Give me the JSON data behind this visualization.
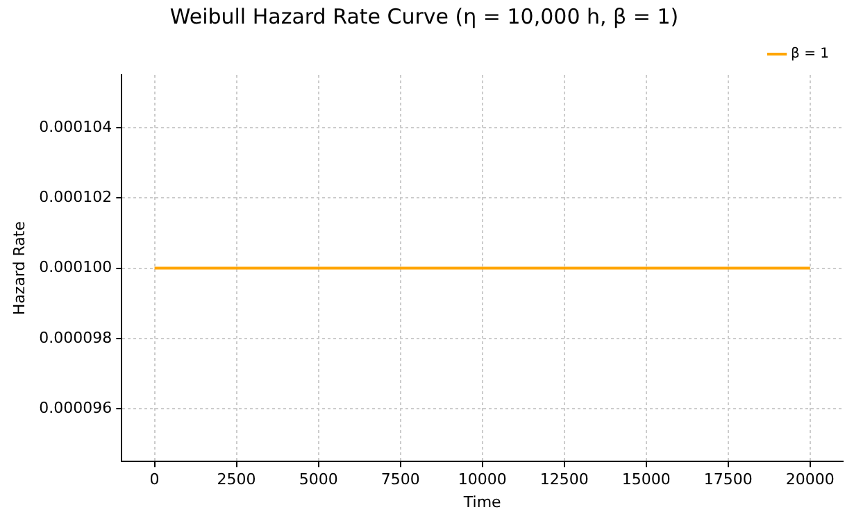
{
  "chart_data": {
    "type": "line",
    "title": "Weibull Hazard Rate Curve (η = 10,000 h, β = 1)",
    "xlabel": "Time",
    "ylabel": "Hazard Rate",
    "series": [
      {
        "name": "β = 1",
        "color": "#ffa500",
        "x": [
          0,
          20000
        ],
        "values": [
          0.0001,
          0.0001
        ]
      }
    ],
    "xlim": [
      -1000,
      21000
    ],
    "xticks": [
      0,
      2500,
      5000,
      7500,
      10000,
      12500,
      15000,
      17500,
      20000
    ],
    "ylim": [
      9.45e-05,
      0.0001055
    ],
    "yticks": [
      {
        "value": 9.6e-05,
        "label": "0.000096"
      },
      {
        "value": 9.8e-05,
        "label": "0.000098"
      },
      {
        "value": 0.0001,
        "label": "0.000100"
      },
      {
        "value": 0.000102,
        "label": "0.000102"
      },
      {
        "value": 0.000104,
        "label": "0.000104"
      }
    ],
    "grid": true,
    "legend": "top right",
    "marker": "none",
    "line_style": "solid"
  }
}
